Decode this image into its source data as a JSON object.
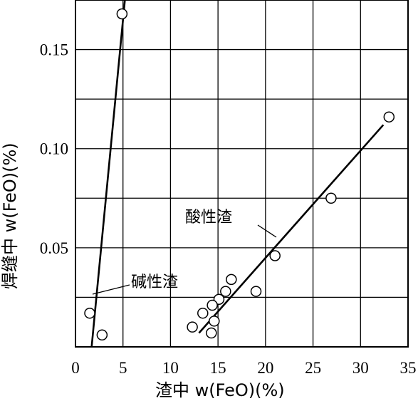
{
  "chart_data": {
    "type": "scatter",
    "title": "",
    "xlabel": "渣中 w(FeO)(%)",
    "ylabel": "焊缝中 w(FeO)(%)",
    "xlim": [
      0,
      35
    ],
    "ylim": [
      0,
      0.175
    ],
    "x_ticks": [
      0,
      5,
      10,
      15,
      20,
      25,
      30,
      35
    ],
    "x_tick_labels": [
      "0",
      "5",
      "10",
      "15",
      "20",
      "25",
      "30",
      "35"
    ],
    "y_ticks": [
      0.05,
      0.1,
      0.15
    ],
    "y_tick_labels": [
      "0.05",
      "0.10",
      "0.15"
    ],
    "grid": true,
    "annotations": [
      "碱性渣",
      "酸性渣"
    ],
    "series": [
      {
        "name": "碱性渣",
        "points": [
          [
            4.9,
            0.168
          ],
          [
            1.5,
            0.017
          ],
          [
            2.8,
            0.006
          ]
        ],
        "fit_line": [
          [
            1.7,
            0.0
          ],
          [
            5.2,
            0.175
          ]
        ]
      },
      {
        "name": "酸性渣",
        "points": [
          [
            33.0,
            0.116
          ],
          [
            26.9,
            0.075
          ],
          [
            21.0,
            0.046
          ],
          [
            16.4,
            0.034
          ],
          [
            15.8,
            0.028
          ],
          [
            19.0,
            0.028
          ],
          [
            15.1,
            0.024
          ],
          [
            14.4,
            0.021
          ],
          [
            13.4,
            0.017
          ],
          [
            14.6,
            0.013
          ],
          [
            12.3,
            0.01
          ],
          [
            14.3,
            0.007
          ]
        ],
        "fit_line": [
          [
            13.0,
            0.007
          ],
          [
            32.4,
            0.112
          ]
        ]
      }
    ]
  }
}
